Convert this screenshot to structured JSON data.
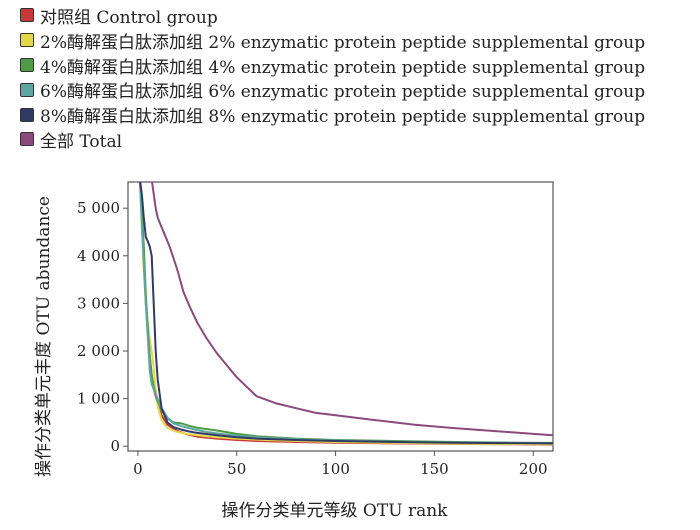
{
  "legend": [
    {
      "label": "对照组 Control group",
      "color": "#c8393c"
    },
    {
      "label": "2%酶解蛋白肽添加组 2% enzymatic protein peptide supplemental group",
      "color": "#e3d84a"
    },
    {
      "label": "4%酶解蛋白肽添加组 4% enzymatic protein peptide supplemental group",
      "color": "#4e9a47"
    },
    {
      "label": "6%酶解蛋白肽添加组 6% enzymatic protein peptide supplemental group",
      "color": "#5fa6a3"
    },
    {
      "label": "8%酶解蛋白肽添加组 8% enzymatic protein peptide supplemental group",
      "color": "#2f3b63"
    },
    {
      "label": "全部 Total",
      "color": "#8b4a7c"
    }
  ],
  "chart_data": {
    "type": "line",
    "title": "",
    "xlabel": "操作分类单元等级  OTU rank",
    "ylabel": "操作分类单元丰度  OTU abundance",
    "xlim": [
      -5,
      210
    ],
    "ylim": [
      -100,
      5550
    ],
    "xticks": [
      0,
      50,
      100,
      150,
      200
    ],
    "xtick_labels": [
      "0",
      "50",
      "100",
      "150",
      "200"
    ],
    "yticks": [
      0,
      1000,
      2000,
      3000,
      4000,
      5000
    ],
    "ytick_labels": [
      "0",
      "1 000",
      "2 000",
      "3 000",
      "4 000",
      "5 000"
    ],
    "grid": false,
    "legend_position": "top-left, above plot",
    "series": [
      {
        "name": "对照组 Control group",
        "color": "#c8393c",
        "x": [
          1,
          2,
          3,
          4,
          5,
          6,
          7,
          8,
          10,
          12,
          15,
          20,
          25,
          30,
          40,
          50,
          60,
          80,
          100,
          130,
          160,
          190,
          210
        ],
        "y": [
          5600,
          5000,
          4000,
          3000,
          2400,
          1900,
          1500,
          1200,
          900,
          650,
          450,
          320,
          250,
          200,
          160,
          130,
          110,
          90,
          75,
          60,
          50,
          40,
          35
        ]
      },
      {
        "name": "2%酶解蛋白肽添加组 2% enzymatic protein peptide supplemental group",
        "color": "#e3d84a",
        "x": [
          1,
          2,
          3,
          4,
          5,
          6,
          7,
          8,
          9,
          10,
          12,
          15,
          20,
          25,
          30,
          40,
          50,
          60,
          80,
          100,
          130,
          160,
          190,
          210
        ],
        "y": [
          5600,
          4600,
          3700,
          3000,
          2600,
          2250,
          2000,
          1650,
          1200,
          850,
          550,
          380,
          300,
          260,
          230,
          190,
          160,
          140,
          110,
          90,
          70,
          55,
          45,
          40
        ]
      },
      {
        "name": "4%酶解蛋白肽添加组 4% enzymatic protein peptide supplemental group",
        "color": "#4e9a47",
        "x": [
          1,
          2,
          3,
          4,
          5,
          6,
          7,
          8,
          10,
          12,
          15,
          18,
          22,
          26,
          30,
          35,
          40,
          50,
          60,
          80,
          100,
          130,
          160,
          190,
          210
        ],
        "y": [
          5600,
          5000,
          4200,
          3200,
          2500,
          1900,
          1500,
          1250,
          950,
          750,
          580,
          500,
          480,
          430,
          390,
          360,
          330,
          260,
          210,
          160,
          130,
          110,
          90,
          75,
          70
        ]
      },
      {
        "name": "6%酶解蛋白肽添加组 6% enzymatic protein peptide supplemental group",
        "color": "#5fa6a3",
        "x": [
          1,
          2,
          3,
          4,
          5,
          6,
          7,
          8,
          10,
          12,
          15,
          18,
          22,
          26,
          30,
          35,
          40,
          50,
          60,
          80,
          100,
          130,
          160,
          190,
          210
        ],
        "y": [
          5600,
          4700,
          3800,
          3000,
          2300,
          1600,
          1300,
          1200,
          1000,
          800,
          600,
          480,
          420,
          380,
          340,
          300,
          270,
          220,
          190,
          150,
          120,
          95,
          80,
          70,
          60
        ]
      },
      {
        "name": "8%酶解蛋白肽添加组 8% enzymatic protein peptide supplemental group",
        "color": "#2f3b63",
        "x": [
          1,
          2,
          3,
          4,
          5,
          6,
          7,
          8,
          9,
          10,
          12,
          15,
          18,
          22,
          26,
          30,
          40,
          50,
          60,
          80,
          100,
          130,
          160,
          190,
          210
        ],
        "y": [
          5600,
          5300,
          4800,
          4400,
          4300,
          4200,
          4000,
          3000,
          2000,
          1400,
          800,
          500,
          400,
          350,
          310,
          280,
          230,
          190,
          160,
          130,
          110,
          90,
          75,
          65,
          60
        ]
      },
      {
        "name": "全部 Total",
        "color": "#8b4a7c",
        "x": [
          7,
          8,
          9,
          10,
          12,
          14,
          16,
          18,
          20,
          23,
          26,
          30,
          35,
          40,
          45,
          50,
          55,
          60,
          70,
          80,
          90,
          100,
          120,
          140,
          160,
          180,
          200,
          210
        ],
        "y": [
          5600,
          5300,
          5000,
          4800,
          4600,
          4400,
          4200,
          3950,
          3700,
          3250,
          2950,
          2600,
          2250,
          1950,
          1700,
          1450,
          1250,
          1050,
          900,
          800,
          700,
          650,
          550,
          450,
          380,
          320,
          260,
          230
        ]
      }
    ]
  }
}
